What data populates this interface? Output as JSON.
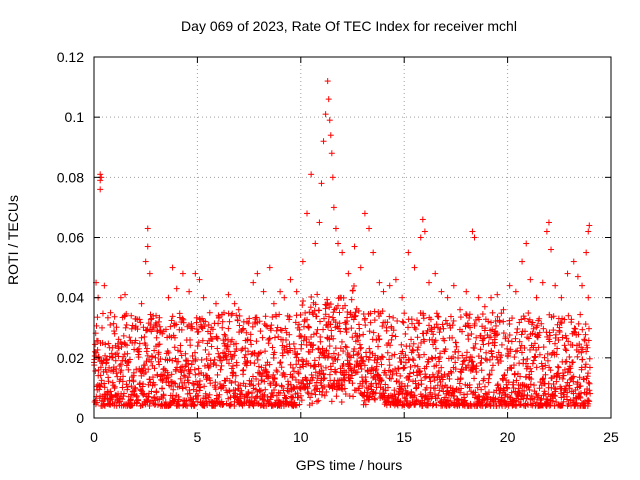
{
  "chart_data": {
    "type": "scatter",
    "title": "Day 069 of 2023, Rate Of TEC Index for receiver mchl",
    "xlabel": "GPS time / hours",
    "ylabel": "ROTI / TECUs",
    "xlim": [
      0,
      25
    ],
    "ylim": [
      0,
      0.12
    ],
    "xticks": [
      0,
      5,
      10,
      15,
      20,
      25
    ],
    "xtick_labels": [
      "0",
      "5",
      "10",
      "15",
      "20",
      "25"
    ],
    "yticks": [
      0,
      0.02,
      0.04,
      0.06,
      0.08,
      0.1,
      0.12
    ],
    "ytick_labels": [
      "0",
      "0.02",
      "0.04",
      "0.06",
      "0.08",
      "0.1",
      "0.12"
    ],
    "grid": true,
    "marker": "+",
    "series_color": "#ff0000",
    "series": [
      {
        "name": "ROTI",
        "points": [
          [
            0.3,
            0.081
          ],
          [
            0.3,
            0.079
          ],
          [
            0.35,
            0.08
          ],
          [
            0.3,
            0.076
          ],
          [
            0.1,
            0.045
          ],
          [
            0.2,
            0.04
          ],
          [
            0.5,
            0.044
          ],
          [
            0.8,
            0.035
          ],
          [
            1.0,
            0.028
          ],
          [
            1.3,
            0.04
          ],
          [
            1.5,
            0.041
          ],
          [
            1.8,
            0.034
          ],
          [
            2.0,
            0.03
          ],
          [
            2.3,
            0.038
          ],
          [
            2.5,
            0.052
          ],
          [
            2.6,
            0.057
          ],
          [
            2.6,
            0.063
          ],
          [
            2.7,
            0.048
          ],
          [
            3.0,
            0.034
          ],
          [
            3.3,
            0.028
          ],
          [
            3.6,
            0.04
          ],
          [
            3.8,
            0.05
          ],
          [
            4.0,
            0.043
          ],
          [
            4.3,
            0.048
          ],
          [
            4.6,
            0.042
          ],
          [
            4.9,
            0.048
          ],
          [
            5.1,
            0.046
          ],
          [
            5.3,
            0.04
          ],
          [
            5.6,
            0.035
          ],
          [
            5.9,
            0.038
          ],
          [
            6.2,
            0.03
          ],
          [
            6.5,
            0.041
          ],
          [
            6.8,
            0.038
          ],
          [
            7.0,
            0.036
          ],
          [
            7.4,
            0.032
          ],
          [
            7.7,
            0.045
          ],
          [
            7.9,
            0.048
          ],
          [
            8.2,
            0.042
          ],
          [
            8.5,
            0.05
          ],
          [
            8.7,
            0.038
          ],
          [
            9.0,
            0.042
          ],
          [
            9.2,
            0.04
          ],
          [
            9.5,
            0.046
          ],
          [
            9.8,
            0.042
          ],
          [
            10.1,
            0.052
          ],
          [
            10.3,
            0.068
          ],
          [
            10.5,
            0.081
          ],
          [
            10.7,
            0.058
          ],
          [
            10.9,
            0.065
          ],
          [
            11.0,
            0.078
          ],
          [
            11.1,
            0.092
          ],
          [
            11.2,
            0.101
          ],
          [
            11.3,
            0.112
          ],
          [
            11.35,
            0.106
          ],
          [
            11.4,
            0.099
          ],
          [
            11.45,
            0.094
          ],
          [
            11.5,
            0.088
          ],
          [
            11.55,
            0.08
          ],
          [
            11.6,
            0.07
          ],
          [
            11.7,
            0.063
          ],
          [
            11.8,
            0.058
          ],
          [
            12.0,
            0.055
          ],
          [
            12.3,
            0.048
          ],
          [
            12.6,
            0.057
          ],
          [
            12.9,
            0.05
          ],
          [
            13.1,
            0.068
          ],
          [
            13.3,
            0.063
          ],
          [
            13.5,
            0.055
          ],
          [
            13.8,
            0.045
          ],
          [
            14.0,
            0.042
          ],
          [
            14.3,
            0.044
          ],
          [
            14.6,
            0.046
          ],
          [
            14.9,
            0.04
          ],
          [
            15.2,
            0.055
          ],
          [
            15.5,
            0.05
          ],
          [
            15.8,
            0.06
          ],
          [
            15.9,
            0.066
          ],
          [
            16.0,
            0.062
          ],
          [
            16.2,
            0.045
          ],
          [
            16.5,
            0.048
          ],
          [
            16.8,
            0.042
          ],
          [
            17.1,
            0.04
          ],
          [
            17.4,
            0.044
          ],
          [
            17.7,
            0.036
          ],
          [
            18.0,
            0.042
          ],
          [
            18.3,
            0.062
          ],
          [
            18.4,
            0.06
          ],
          [
            18.6,
            0.04
          ],
          [
            18.9,
            0.037
          ],
          [
            19.2,
            0.04
          ],
          [
            19.5,
            0.041
          ],
          [
            19.8,
            0.036
          ],
          [
            20.1,
            0.044
          ],
          [
            20.4,
            0.042
          ],
          [
            20.7,
            0.052
          ],
          [
            20.9,
            0.058
          ],
          [
            21.1,
            0.046
          ],
          [
            21.4,
            0.04
          ],
          [
            21.7,
            0.045
          ],
          [
            21.9,
            0.062
          ],
          [
            22.0,
            0.065
          ],
          [
            22.1,
            0.056
          ],
          [
            22.3,
            0.044
          ],
          [
            22.6,
            0.04
          ],
          [
            22.9,
            0.048
          ],
          [
            23.2,
            0.052
          ],
          [
            23.4,
            0.047
          ],
          [
            23.6,
            0.044
          ],
          [
            23.8,
            0.055
          ],
          [
            23.9,
            0.062
          ],
          [
            23.95,
            0.064
          ],
          [
            23.9,
            0.04
          ]
        ],
        "baseline_band": {
          "x_range": [
            0,
            24
          ],
          "y_range": [
            0.004,
            0.035
          ],
          "typical": 0.013
        }
      }
    ]
  }
}
